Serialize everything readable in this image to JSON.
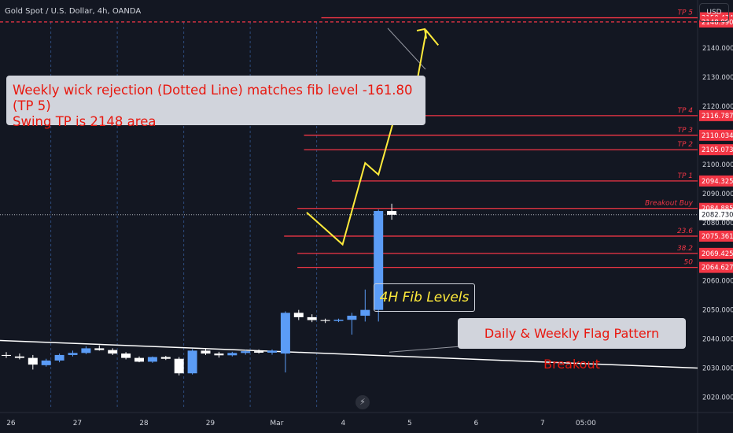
{
  "header": {
    "title": "Gold Spot / U.S. Dollar, 4h, OANDA",
    "currency": "USD"
  },
  "annotations": {
    "callout_weekly_line1": "Weekly wick rejection (Dotted Line) matches fib level -161.80 (TP 5)",
    "callout_weekly_line2": "Swing TP is 2148 area",
    "fib_box": "4H Fib Levels",
    "flag_box": "Daily & Weekly Flag Pattern Breakout"
  },
  "colors": {
    "background": "#131722",
    "bull": "#5b9cf6",
    "bear": "#ffffff",
    "level": "#f23645",
    "projection": "#ffeb3b",
    "trend": "#ffffff"
  },
  "chart_data": {
    "type": "candlestick",
    "title": "Gold Spot / U.S. Dollar, 4h, OANDA",
    "ylim": [
      2015,
      2160
    ],
    "y_ticks": [
      2020,
      2030,
      2040,
      2050,
      2060,
      2070,
      2080,
      2090,
      2100,
      2110,
      2120,
      2130,
      2140,
      2150
    ],
    "y_tick_labels": [
      "2020.000",
      "2030.000",
      "2040.000",
      "2050.000",
      "2060.000",
      "2070.000",
      "2080.000",
      "2090.000",
      "2100.000",
      "2110.000",
      "2120.000",
      "2130.000",
      "2140.000",
      "2150.000"
    ],
    "x_slot_range": [
      0,
      44
    ],
    "x_ticks": [
      {
        "slot": 0.35,
        "label": "26"
      },
      {
        "slot": 5.35,
        "label": "27"
      },
      {
        "slot": 10.35,
        "label": "28"
      },
      {
        "slot": 15.35,
        "label": "29"
      },
      {
        "slot": 20.35,
        "label": "Mar"
      },
      {
        "slot": 25.35,
        "label": "4"
      },
      {
        "slot": 30.35,
        "label": "5"
      },
      {
        "slot": 35.35,
        "label": "6"
      },
      {
        "slot": 40.35,
        "label": "7"
      },
      {
        "slot": 43.6,
        "label": "05:00"
      }
    ],
    "vertical_dotted_at": [
      3.35,
      8.35,
      13.35,
      18.35,
      23.35
    ],
    "candles": [
      {
        "o": 2034.5,
        "h": 2035.5,
        "l": 2033.5,
        "c": 2034.2
      },
      {
        "o": 2034.0,
        "h": 2035.0,
        "l": 2033.0,
        "c": 2033.5
      },
      {
        "o": 2033.5,
        "h": 2034.5,
        "l": 2029.5,
        "c": 2031.2
      },
      {
        "o": 2031.0,
        "h": 2033.2,
        "l": 2030.5,
        "c": 2032.6
      },
      {
        "o": 2032.6,
        "h": 2035.0,
        "l": 2032.0,
        "c": 2034.5
      },
      {
        "o": 2034.5,
        "h": 2036.0,
        "l": 2034.0,
        "c": 2035.2
      },
      {
        "o": 2035.2,
        "h": 2037.5,
        "l": 2034.8,
        "c": 2036.8
      },
      {
        "o": 2036.8,
        "h": 2037.8,
        "l": 2036.0,
        "c": 2036.2
      },
      {
        "o": 2036.2,
        "h": 2036.8,
        "l": 2034.5,
        "c": 2035.0
      },
      {
        "o": 2035.0,
        "h": 2035.5,
        "l": 2033.0,
        "c": 2033.5
      },
      {
        "o": 2033.5,
        "h": 2034.0,
        "l": 2032.0,
        "c": 2032.2
      },
      {
        "o": 2032.2,
        "h": 2034.0,
        "l": 2031.8,
        "c": 2033.8
      },
      {
        "o": 2033.8,
        "h": 2034.2,
        "l": 2032.8,
        "c": 2033.2
      },
      {
        "o": 2033.2,
        "h": 2033.8,
        "l": 2027.5,
        "c": 2028.2
      },
      {
        "o": 2028.2,
        "h": 2036.5,
        "l": 2027.8,
        "c": 2036.0
      },
      {
        "o": 2036.0,
        "h": 2036.5,
        "l": 2034.5,
        "c": 2035.0
      },
      {
        "o": 2035.0,
        "h": 2035.6,
        "l": 2033.6,
        "c": 2034.4
      },
      {
        "o": 2034.4,
        "h": 2035.6,
        "l": 2034.0,
        "c": 2035.2
      },
      {
        "o": 2035.2,
        "h": 2036.2,
        "l": 2034.6,
        "c": 2035.8
      },
      {
        "o": 2035.8,
        "h": 2036.4,
        "l": 2035.0,
        "c": 2035.3
      },
      {
        "o": 2035.3,
        "h": 2036.4,
        "l": 2034.6,
        "c": 2036.0
      },
      {
        "o": 2035.0,
        "h": 2049.5,
        "l": 2028.5,
        "c": 2049.0
      },
      {
        "o": 2049.0,
        "h": 2050.0,
        "l": 2046.5,
        "c": 2047.5
      },
      {
        "o": 2047.5,
        "h": 2048.5,
        "l": 2045.8,
        "c": 2046.5
      },
      {
        "o": 2046.5,
        "h": 2047.0,
        "l": 2045.5,
        "c": 2046.2
      },
      {
        "o": 2046.2,
        "h": 2047.0,
        "l": 2045.8,
        "c": 2046.6
      },
      {
        "o": 2046.6,
        "h": 2049.0,
        "l": 2041.5,
        "c": 2048.0
      },
      {
        "o": 2048.0,
        "h": 2057.0,
        "l": 2046.0,
        "c": 2050.0
      },
      {
        "o": 2050.0,
        "h": 2084.5,
        "l": 2046.0,
        "c": 2084.0
      },
      {
        "o": 2084.0,
        "h": 2086.5,
        "l": 2081.0,
        "c": 2082.7
      }
    ],
    "levels": [
      {
        "label": "TP 5",
        "value": 2150.434,
        "value_label": "2150.434",
        "x_start": 23.7
      },
      {
        "label": "",
        "value": 2148.99,
        "value_label": "2148.990",
        "x_start": 0,
        "dashed": true
      },
      {
        "label": "TP 4",
        "value": 2116.787,
        "value_label": "2116.787",
        "x_start": 22.4
      },
      {
        "label": "TP 3",
        "value": 2110.034,
        "value_label": "2110.034",
        "x_start": 22.4
      },
      {
        "label": "TP 2",
        "value": 2105.073,
        "value_label": "2105.073",
        "x_start": 22.4
      },
      {
        "label": "TP 1",
        "value": 2094.325,
        "value_label": "2094.325",
        "x_start": 24.5
      },
      {
        "label": "Breakout Buy",
        "value": 2084.885,
        "value_label": "2084.885",
        "x_start": 21.9
      },
      {
        "label": "23.6",
        "value": 2075.361,
        "value_label": "2075.361",
        "x_start": 20.9
      },
      {
        "label": "38.2",
        "value": 2069.425,
        "value_label": "2069.425",
        "x_start": 21.9
      },
      {
        "label": "50",
        "value": 2064.627,
        "value_label": "2064.627",
        "x_start": 21.9
      }
    ],
    "current_price": {
      "value": 2082.73,
      "label": "2082.730"
    },
    "projection_path": [
      [
        22.6,
        2083.5
      ],
      [
        25.3,
        2072.5
      ],
      [
        27.0,
        2100.5
      ],
      [
        28.0,
        2096.5
      ],
      [
        29.6,
        2122.5
      ],
      [
        30.4,
        2116.0
      ],
      [
        31.6,
        2146.0
      ],
      [
        32.5,
        2141.0
      ]
    ],
    "trend_line": [
      [
        0,
        2039.5
      ],
      [
        44,
        2030.0
      ]
    ]
  }
}
